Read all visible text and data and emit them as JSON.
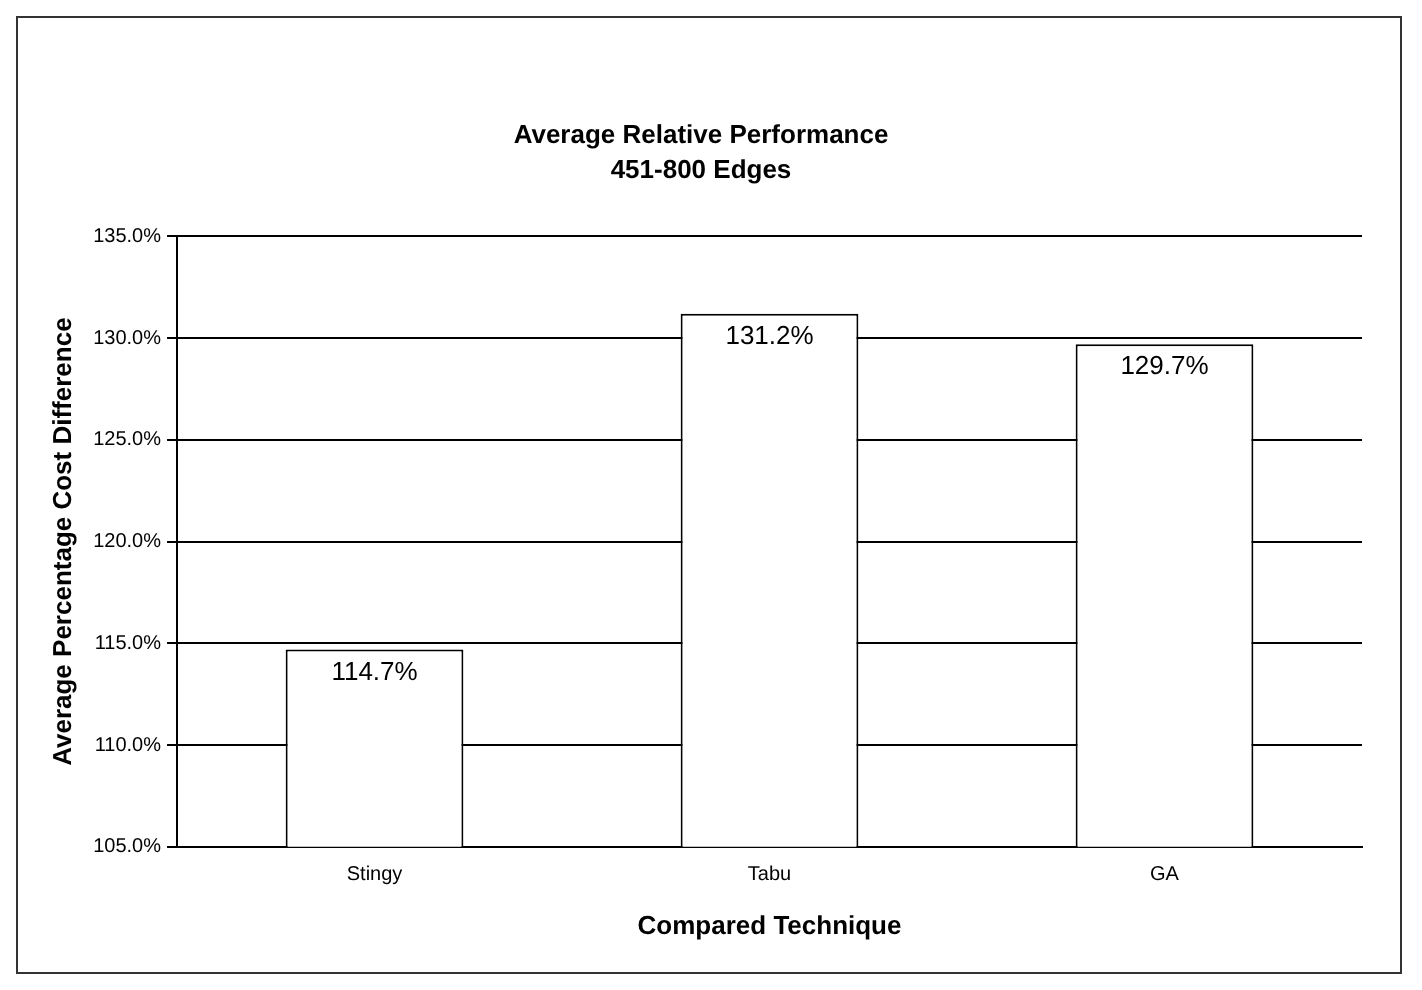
{
  "chart_data": {
    "type": "bar",
    "title": "Average Relative Performance",
    "subtitle": "451-800 Edges",
    "xlabel": "Compared Technique",
    "ylabel": "Average Percentage Cost Difference",
    "categories": [
      "Stingy",
      "Tabu",
      "GA"
    ],
    "values": [
      114.7,
      131.2,
      129.7
    ],
    "value_labels": [
      "114.7%",
      "131.2%",
      "129.7%"
    ],
    "color": "#ffffff",
    "ylim": [
      105,
      135
    ],
    "yticks": [
      {
        "value": 105,
        "label": "105.0%"
      },
      {
        "value": 110,
        "label": "110.0%"
      },
      {
        "value": 115,
        "label": "115.0%"
      },
      {
        "value": 120,
        "label": "120.0%"
      },
      {
        "value": 125,
        "label": "125.0%"
      },
      {
        "value": 130,
        "label": "130.0%"
      },
      {
        "value": 135,
        "label": "135.0%"
      }
    ],
    "grid": "y",
    "legend": false
  }
}
